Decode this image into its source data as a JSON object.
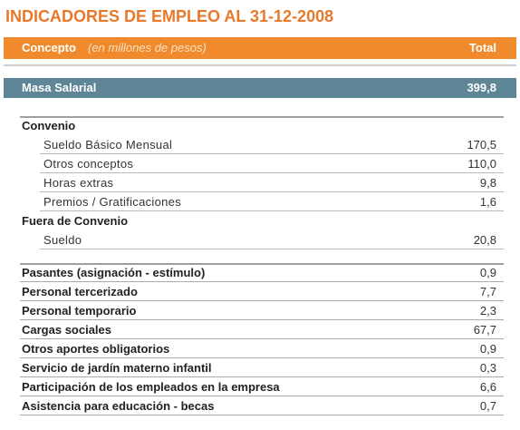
{
  "title": "INDICADORES DE EMPLEO AL 31-12-2008",
  "header": {
    "concept": "Concepto",
    "unit": "(en millones de pesos)",
    "total": "Total"
  },
  "highlight": {
    "label": "Masa Salarial",
    "value": "399,8"
  },
  "groups": [
    {
      "title": "Convenio",
      "rows": [
        {
          "label": "Sueldo Básico Mensual",
          "value": "170,5"
        },
        {
          "label": "Otros conceptos",
          "value": "110,0"
        },
        {
          "label": "Horas extras",
          "value": "9,8"
        },
        {
          "label": "Premios / Gratificaciones",
          "value": "1,6"
        }
      ]
    },
    {
      "title": "Fuera de Convenio",
      "rows": [
        {
          "label": "Sueldo",
          "value": "20,8"
        }
      ]
    }
  ],
  "rows": [
    {
      "label": "Pasantes (asignación - estímulo)",
      "value": "0,9"
    },
    {
      "label": "Personal tercerizado",
      "value": "7,7"
    },
    {
      "label": "Personal temporario",
      "value": "2,3"
    },
    {
      "label": "Cargas sociales",
      "value": "67,7"
    },
    {
      "label": "Otros aportes obligatorios",
      "value": "0,9"
    },
    {
      "label": "Servicio de jardín materno infantil",
      "value": "0,3"
    },
    {
      "label": "Participación de los empleados en la empresa",
      "value": "6,6"
    },
    {
      "label": "Asistencia para educación - becas",
      "value": "0,7"
    }
  ]
}
